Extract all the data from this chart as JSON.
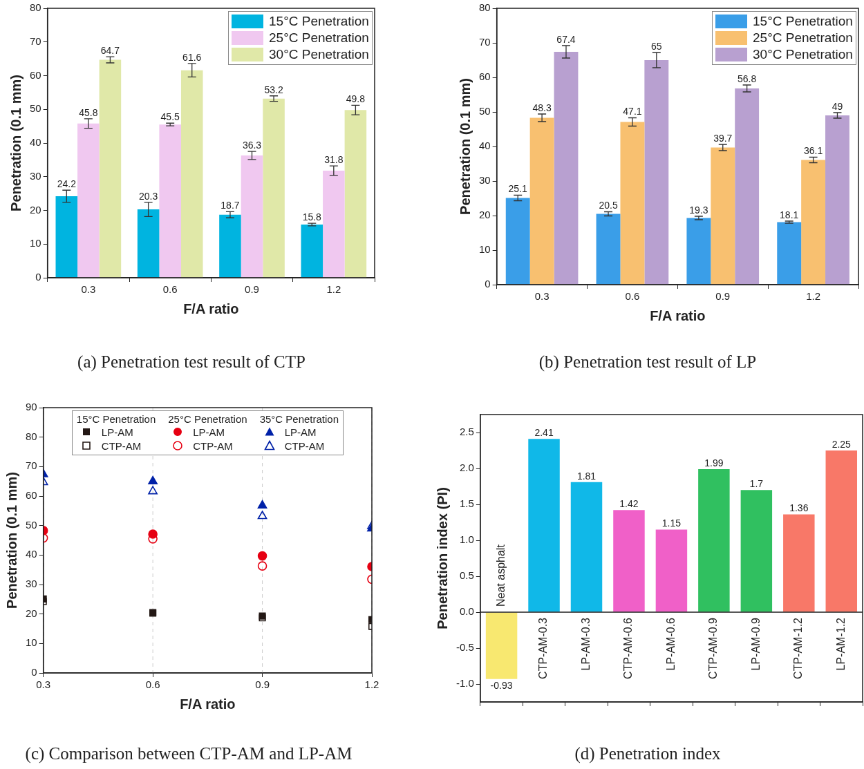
{
  "chart_data": [
    {
      "type": "bar",
      "title": "(a) Penetration test result of CTP",
      "xlabel": "F/A ratio",
      "ylabel": "Penetration (0.1 mm)",
      "categories": [
        "0.3",
        "0.6",
        "0.9",
        "1.2"
      ],
      "ylim": [
        0,
        80
      ],
      "yticks": [
        0,
        10,
        20,
        30,
        40,
        50,
        60,
        70,
        80
      ],
      "legend": "top right",
      "data_labels": true,
      "series": [
        {
          "name": "15°C Penetration",
          "color": "#00b4e0",
          "values": [
            24.2,
            20.3,
            18.7,
            15.8
          ],
          "errors": [
            1.8,
            2.1,
            0.9,
            0.4
          ]
        },
        {
          "name": "25°C Penetration",
          "color": "#f0c8f0",
          "values": [
            45.8,
            45.5,
            36.3,
            31.8
          ],
          "errors": [
            1.4,
            0.4,
            1.2,
            1.4
          ]
        },
        {
          "name": "30°C Penetration",
          "color": "#e0e8a8",
          "values": [
            64.7,
            61.6,
            53.2,
            49.8
          ],
          "errors": [
            0.9,
            2,
            0.8,
            1.4
          ]
        }
      ]
    },
    {
      "type": "bar",
      "title": "(b) Penetration test result of LP",
      "xlabel": "F/A ratio",
      "ylabel": "Penetration (0.1 mm)",
      "categories": [
        "0.3",
        "0.6",
        "0.9",
        "1.2"
      ],
      "ylim": [
        0,
        80
      ],
      "yticks": [
        0,
        10,
        20,
        30,
        40,
        50,
        60,
        70,
        80
      ],
      "legend": "top right",
      "data_labels": true,
      "series": [
        {
          "name": "15°C Penetration",
          "color": "#3a9ee8",
          "values": [
            25.1,
            20.5,
            19.3,
            18.1
          ],
          "errors": [
            0.8,
            0.6,
            0.5,
            0.3
          ]
        },
        {
          "name": "25°C Penetration",
          "color": "#f8c070",
          "values": [
            48.3,
            47.1,
            39.7,
            36.1
          ],
          "errors": [
            1.1,
            1.2,
            0.9,
            0.8
          ]
        },
        {
          "name": "30°C Penetration",
          "color": "#b8a0d0",
          "values": [
            67.4,
            65,
            56.8,
            49
          ],
          "errors": [
            1.8,
            2.2,
            1,
            0.8
          ]
        }
      ]
    },
    {
      "type": "scatter",
      "title": "(c) Comparison between CTP-AM and LP-AM",
      "xlabel": "F/A ratio",
      "ylabel": "Penetration (0.1 mm)",
      "x": [
        0.3,
        0.6,
        0.9,
        1.2
      ],
      "xlim": [
        0.3,
        1.2
      ],
      "xticks": [
        0.3,
        0.6,
        0.9,
        1.2
      ],
      "ylim": [
        0,
        90
      ],
      "yticks": [
        0,
        10,
        20,
        30,
        40,
        50,
        60,
        70,
        80,
        90
      ],
      "grid": "x",
      "legend": "top",
      "annotations": [
        "15°C Penetration",
        "25°C Penetration",
        "35°C Penetration"
      ],
      "series": [
        {
          "name": "LP-AM",
          "color": "#231815",
          "marker": "square",
          "values": [
            25.1,
            20.5,
            19.3,
            18.1
          ]
        },
        {
          "name": "CTP-AM",
          "color": "#231815",
          "marker": "square",
          "values": [
            24.2,
            20.3,
            18.7,
            15.8
          ]
        },
        {
          "name": "LP-AM",
          "color": "#e60012",
          "marker": "circle",
          "values": [
            48.3,
            47.1,
            39.7,
            36.1
          ]
        },
        {
          "name": "CTP-AM",
          "color": "#e60012",
          "marker": "circle",
          "values": [
            45.8,
            45.5,
            36.3,
            31.8
          ]
        },
        {
          "name": "LP-AM",
          "color": "#0021a8",
          "marker": "triangle",
          "values": [
            67.4,
            65,
            56.8,
            49
          ]
        },
        {
          "name": "CTP-AM",
          "color": "#0021a8",
          "marker": "triangle",
          "values": [
            64.7,
            61.6,
            53.2,
            49.8
          ]
        }
      ]
    },
    {
      "type": "bar",
      "title": "(d) Penetration index",
      "ylabel": "Penetration index (PI)",
      "categories": [
        "Neat asphalt",
        "CTP-AM-0.3",
        "LP-AM-0.3",
        "CTP-AM-0.6",
        "LP-AM-0.6",
        "CTP-AM-0.9",
        "LP-AM-0.9",
        "CTP-AM-1.2",
        "LP-AM-1.2"
      ],
      "ylim": [
        -1.25,
        2.75
      ],
      "yticks": [
        {
          "value": -1,
          "label": "-1.0"
        },
        -0.5,
        {
          "value": 0,
          "label": "0.0"
        },
        0.5,
        {
          "value": 1,
          "label": "1.0"
        },
        1.5,
        {
          "value": 2,
          "label": "2.0"
        },
        2.5
      ],
      "data_labels": true,
      "values": [
        -0.93,
        2.41,
        1.81,
        1.42,
        1.15,
        1.99,
        1.7,
        1.36,
        2.25
      ],
      "colors": [
        "#f8e870",
        "#10b8e8",
        "#10b8e8",
        "#f060c8",
        "#f060c8",
        "#30c060",
        "#30c060",
        "#f87868",
        "#f87868"
      ]
    }
  ]
}
